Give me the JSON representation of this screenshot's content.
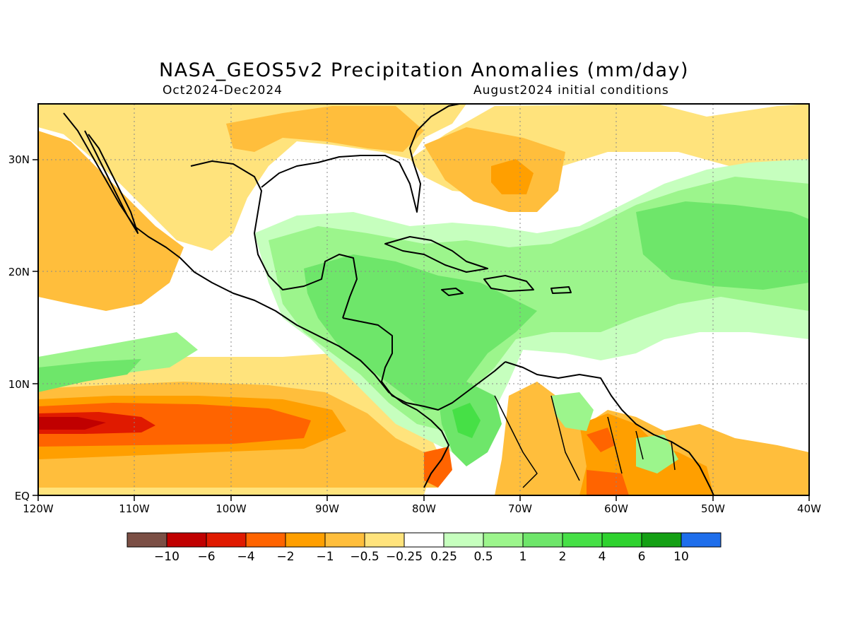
{
  "header": {
    "title": "NASA_GEOS5v2 Precipitation Anomalies (mm/day)",
    "period": "Oct2024-Dec2024",
    "initial_conditions": "August2024 initial conditions"
  },
  "axes": {
    "lat_labels": [
      "30N",
      "20N",
      "10N",
      "EQ"
    ],
    "lon_labels": [
      "120W",
      "110W",
      "100W",
      "90W",
      "80W",
      "70W",
      "60W",
      "50W",
      "40W"
    ],
    "lat_range": [
      0,
      35
    ],
    "lon_range": [
      -120,
      -40
    ],
    "grid": "dotted"
  },
  "colorbar": {
    "colors": [
      "#7b4f45",
      "#c00000",
      "#e01a00",
      "#ff6400",
      "#ff9f00",
      "#ffbe3c",
      "#ffe37c",
      "#ffffff",
      "#c6ffbe",
      "#9cf58c",
      "#6ee66a",
      "#46e046",
      "#2ed22e",
      "#14a014",
      "#1e6eeb"
    ],
    "labels": [
      "-10",
      "-6",
      "-4",
      "-2",
      "-1",
      "-0.5",
      "-0.25",
      "0.25",
      "0.5",
      "1",
      "2",
      "4",
      "6",
      "10"
    ]
  }
}
